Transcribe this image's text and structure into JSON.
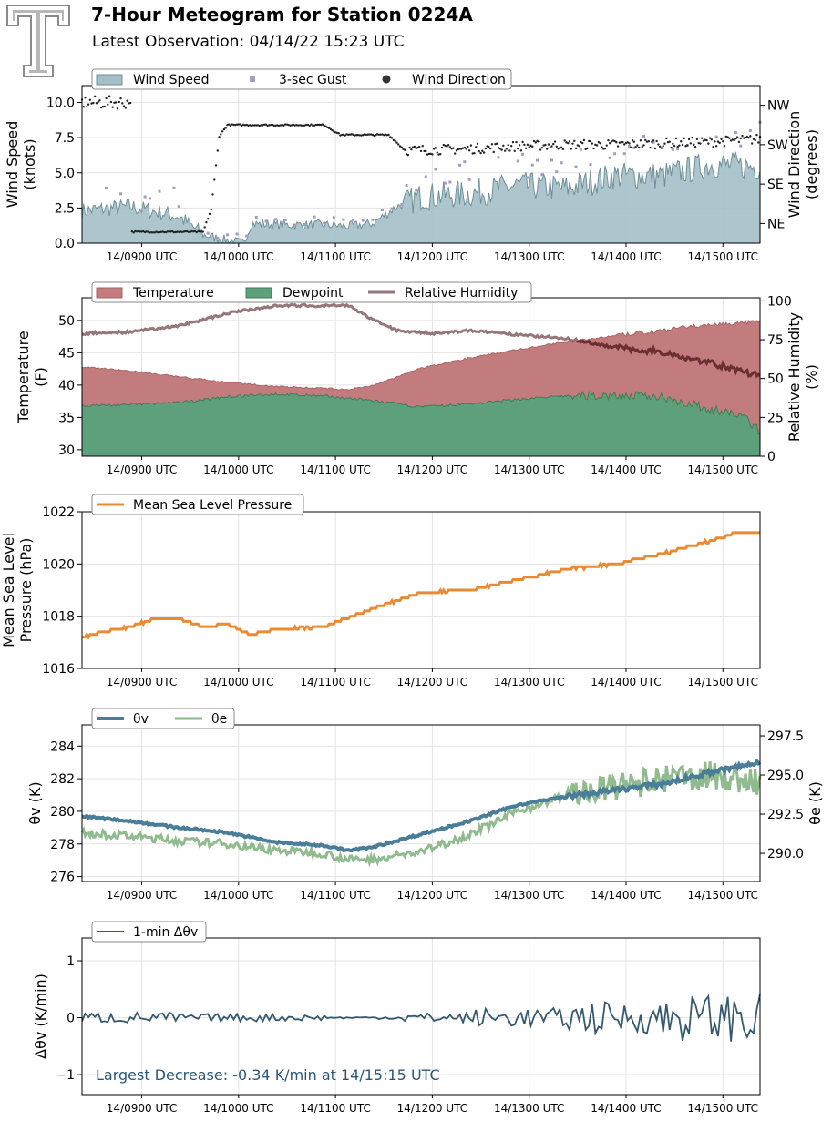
{
  "header": {
    "title": "7-Hour Meteogram for Station 0224A",
    "subtitle": "Latest Observation: 04/14/22 15:23 UTC",
    "logo": "texas-tech-double-t-logo"
  },
  "x_ticks": [
    "14/0900 UTC",
    "14/1000 UTC",
    "14/1100 UTC",
    "14/1200 UTC",
    "14/1300 UTC",
    "14/1400 UTC",
    "14/1500 UTC"
  ],
  "chart_data": [
    {
      "id": "wind",
      "type": "area",
      "xlabel": "",
      "ylabel": "Wind Speed\n(knots)",
      "ylim": [
        0,
        11.2
      ],
      "yticks": [
        "0.0",
        "2.5",
        "5.0",
        "7.5",
        "10.0"
      ],
      "ylabel_right": "Wind Direction\n(degrees)",
      "yticks_right": [
        "NE",
        "SE",
        "SW",
        "NW"
      ],
      "x_range": [
        "14/0823 UTC",
        "14/1523 UTC"
      ],
      "legend": [
        "Wind Speed",
        "3-sec Gust",
        "Wind Direction"
      ],
      "legend_position": "top-left, above axes",
      "grid": true,
      "series": [
        {
          "name": "Wind Speed",
          "type": "area",
          "color": "#A4BFC6",
          "points": [
            [
              0,
              2.3
            ],
            [
              30,
              2.6
            ],
            [
              60,
              1.9
            ],
            [
              75,
              0.6
            ],
            [
              90,
              0.2
            ],
            [
              100,
              0.0
            ],
            [
              105,
              1.4
            ],
            [
              120,
              1.3
            ],
            [
              150,
              1.3
            ],
            [
              165,
              1.2
            ],
            [
              180,
              1.4
            ],
            [
              195,
              2.6
            ],
            [
              210,
              3.3
            ],
            [
              240,
              3.5
            ],
            [
              270,
              4.1
            ],
            [
              300,
              3.9
            ],
            [
              330,
              4.8
            ],
            [
              360,
              4.8
            ],
            [
              390,
              5.6
            ],
            [
              420,
              5.4
            ]
          ]
        },
        {
          "name": "3-sec Gust",
          "type": "scatter",
          "color": "#A59CC0",
          "points": [
            [
              0,
              4.6
            ],
            [
              30,
              3.9
            ],
            [
              60,
              3.0
            ],
            [
              75,
              1.0
            ],
            [
              105,
              1.6
            ],
            [
              150,
              1.7
            ],
            [
              180,
              1.9
            ],
            [
              210,
              4.4
            ],
            [
              240,
              5.2
            ],
            [
              270,
              5.5
            ],
            [
              300,
              5.6
            ],
            [
              330,
              6.5
            ],
            [
              360,
              7.0
            ],
            [
              390,
              7.6
            ],
            [
              420,
              7.7
            ]
          ]
        },
        {
          "name": "Wind Direction",
          "type": "scatter",
          "color": "#222222",
          "axis": "right",
          "points": [
            [
              0,
              10.0
            ],
            [
              30,
              10.0
            ],
            [
              31,
              0.8
            ],
            [
              75,
              0.8
            ],
            [
              80,
              2.4
            ],
            [
              85,
              7.6
            ],
            [
              90,
              8.4
            ],
            [
              150,
              8.4
            ],
            [
              160,
              7.7
            ],
            [
              190,
              7.7
            ],
            [
              200,
              6.6
            ],
            [
              240,
              6.7
            ],
            [
              270,
              6.9
            ],
            [
              300,
              7.0
            ],
            [
              330,
              7.0
            ],
            [
              360,
              7.1
            ],
            [
              390,
              7.2
            ],
            [
              420,
              7.4
            ]
          ]
        }
      ]
    },
    {
      "id": "temperature",
      "type": "area",
      "ylabel": "Temperature\n(F)",
      "ylim": [
        29,
        53.5
      ],
      "yticks": [
        "30",
        "35",
        "40",
        "45",
        "50"
      ],
      "ylabel_right": "Relative Humidity\n(%)",
      "yticks_right": [
        "0",
        "25",
        "50",
        "75",
        "100"
      ],
      "ylim_right": [
        0,
        102
      ],
      "legend": [
        "Temperature",
        "Dewpoint",
        "Relative Humidity"
      ],
      "legend_position": "top-left, above axes",
      "grid": true,
      "series": [
        {
          "name": "Temperature",
          "color": "#C37C7D",
          "points": [
            [
              0,
              42.8
            ],
            [
              30,
              42.2
            ],
            [
              60,
              41.3
            ],
            [
              90,
              40.4
            ],
            [
              120,
              39.8
            ],
            [
              150,
              39.5
            ],
            [
              165,
              39.3
            ],
            [
              180,
              39.9
            ],
            [
              210,
              42.6
            ],
            [
              240,
              44.2
            ],
            [
              270,
              45.5
            ],
            [
              300,
              46.7
            ],
            [
              330,
              47.6
            ],
            [
              360,
              48.5
            ],
            [
              390,
              49.4
            ],
            [
              420,
              49.7
            ]
          ]
        },
        {
          "name": "Dewpoint",
          "color": "#5EA07B",
          "points": [
            [
              0,
              36.8
            ],
            [
              30,
              37.0
            ],
            [
              60,
              37.3
            ],
            [
              90,
              38.2
            ],
            [
              120,
              38.6
            ],
            [
              150,
              38.3
            ],
            [
              180,
              37.6
            ],
            [
              210,
              36.6
            ],
            [
              240,
              37.1
            ],
            [
              270,
              37.8
            ],
            [
              300,
              38.3
            ],
            [
              330,
              38.4
            ],
            [
              360,
              38.2
            ],
            [
              390,
              36.2
            ],
            [
              410,
              35.2
            ],
            [
              420,
              32.8
            ]
          ]
        },
        {
          "name": "Relative Humidity",
          "color": "#957779",
          "axis": "right",
          "points": [
            [
              0,
              79
            ],
            [
              30,
              80
            ],
            [
              60,
              84
            ],
            [
              90,
              92
            ],
            [
              120,
              97
            ],
            [
              150,
              97
            ],
            [
              165,
              97
            ],
            [
              180,
              88
            ],
            [
              195,
              81
            ],
            [
              220,
              79
            ],
            [
              240,
              81
            ],
            [
              270,
              78
            ],
            [
              300,
              76
            ],
            [
              330,
              70
            ],
            [
              360,
              67
            ],
            [
              390,
              60
            ],
            [
              410,
              54
            ],
            [
              420,
              52
            ]
          ]
        }
      ]
    },
    {
      "id": "pressure",
      "type": "line",
      "ylabel": "Mean Sea Level\nPressure (hPa)",
      "ylim": [
        1016,
        1022
      ],
      "yticks": [
        "1016",
        "1018",
        "1020",
        "1022"
      ],
      "legend": [
        "Mean Sea Level Pressure"
      ],
      "legend_position": "top-left, above axes",
      "grid": true,
      "series": [
        {
          "name": "Mean Sea Level Pressure",
          "color": "#E98B33",
          "points": [
            [
              0,
              1017.2
            ],
            [
              30,
              1017.6
            ],
            [
              45,
              1017.9
            ],
            [
              60,
              1017.9
            ],
            [
              75,
              1017.6
            ],
            [
              90,
              1017.7
            ],
            [
              105,
              1017.3
            ],
            [
              120,
              1017.5
            ],
            [
              150,
              1017.6
            ],
            [
              180,
              1018.3
            ],
            [
              210,
              1018.9
            ],
            [
              240,
              1019.0
            ],
            [
              270,
              1019.4
            ],
            [
              300,
              1019.8
            ],
            [
              330,
              1020.0
            ],
            [
              360,
              1020.4
            ],
            [
              390,
              1020.9
            ],
            [
              405,
              1021.2
            ],
            [
              420,
              1021.2
            ]
          ]
        }
      ]
    },
    {
      "id": "theta",
      "type": "line",
      "ylabel": "θv (K)",
      "ylim": [
        275.7,
        285.3
      ],
      "yticks": [
        "276",
        "278",
        "280",
        "282",
        "284"
      ],
      "ylabel_right": "θe (K)",
      "yticks_right": [
        "290.0",
        "292.5",
        "295.0",
        "297.5"
      ],
      "ylim_right": [
        288.2,
        298.2
      ],
      "legend": [
        "θv",
        "θe"
      ],
      "legend_position": "top-left, above axes",
      "grid": true,
      "series": [
        {
          "name": "θv",
          "color": "#4A7E98",
          "points": [
            [
              0,
              279.7
            ],
            [
              30,
              279.4
            ],
            [
              60,
              279.0
            ],
            [
              90,
              278.7
            ],
            [
              120,
              278.1
            ],
            [
              150,
              277.9
            ],
            [
              165,
              277.6
            ],
            [
              180,
              277.8
            ],
            [
              210,
              278.6
            ],
            [
              240,
              279.4
            ],
            [
              270,
              280.4
            ],
            [
              300,
              280.9
            ],
            [
              330,
              281.3
            ],
            [
              360,
              281.7
            ],
            [
              390,
              282.4
            ],
            [
              420,
              283.0
            ]
          ]
        },
        {
          "name": "θe",
          "color": "#8AB788",
          "axis": "right",
          "points": [
            [
              0,
              291.3
            ],
            [
              30,
              291.1
            ],
            [
              60,
              290.8
            ],
            [
              90,
              290.6
            ],
            [
              120,
              290.2
            ],
            [
              150,
              290.0
            ],
            [
              165,
              289.6
            ],
            [
              180,
              289.6
            ],
            [
              210,
              290.1
            ],
            [
              240,
              291.2
            ],
            [
              270,
              292.7
            ],
            [
              300,
              293.7
            ],
            [
              330,
              294.2
            ],
            [
              360,
              294.7
            ],
            [
              390,
              295.0
            ],
            [
              420,
              294.5
            ]
          ]
        }
      ]
    },
    {
      "id": "delta",
      "type": "line",
      "ylabel": "Δθv (K/min)",
      "ylim": [
        -1.35,
        1.4
      ],
      "yticks": [
        "−1",
        "0",
        "1"
      ],
      "legend": [
        "1-min Δθv"
      ],
      "legend_position": "top-left, above axes",
      "grid": true,
      "annotation": "Largest Decrease: -0.34 K/min at 14/15:15 UTC",
      "series": [
        {
          "name": "1-min Δθv",
          "color": "#36596E",
          "amplitude_by_hour": [
            0.07,
            0.05,
            0.04,
            0.06,
            0.12,
            0.2,
            0.3
          ],
          "min": -0.34,
          "min_x": 412
        }
      ]
    }
  ]
}
